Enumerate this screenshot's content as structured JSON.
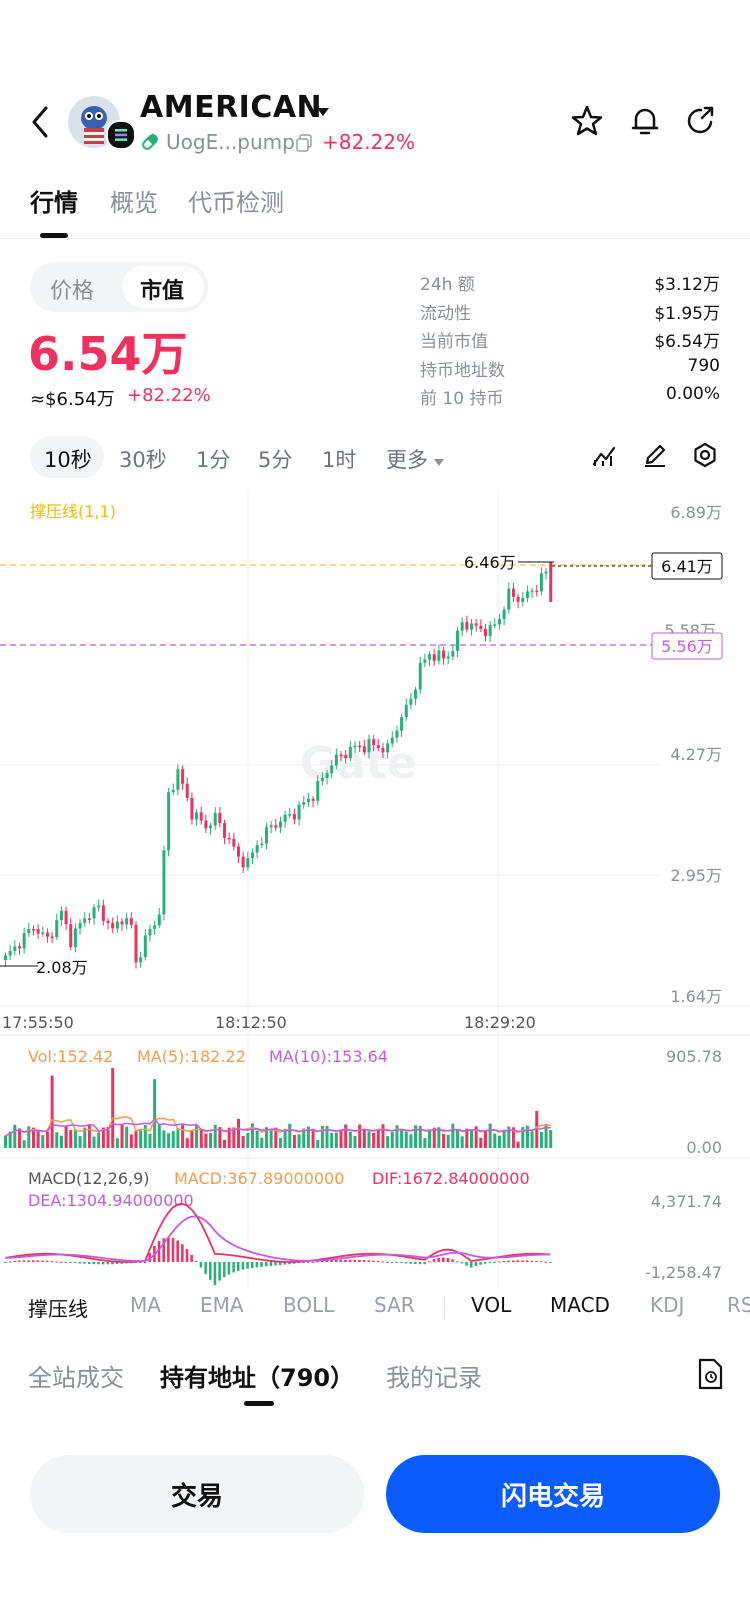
{
  "header": {
    "token_name": "AMERICAN",
    "address": "UogE...pump",
    "change": "+82.22%"
  },
  "tabs": [
    "行情",
    "概览",
    "代币检测"
  ],
  "toggle": {
    "price": "价格",
    "mcap": "市值"
  },
  "price": {
    "main": "6.54万",
    "usd": "≈$6.54万",
    "change": "+82.22%"
  },
  "stats": [
    {
      "label": "24h  额",
      "value": "$3.12万"
    },
    {
      "label": "流动性",
      "value": "$1.95万"
    },
    {
      "label": "当前市值",
      "value": "$6.54万"
    },
    {
      "label": "持币地址数",
      "value": "790"
    },
    {
      "label": "前 10 持币",
      "value": "0.00%"
    }
  ],
  "timeframes": [
    "10秒",
    "30秒",
    "1分",
    "5分",
    "1时",
    "更多"
  ],
  "chart": {
    "indicator_label": "撑压线(1,1)",
    "watermark": "Gate",
    "y_ticks": [
      "6.89万",
      "5.56万",
      "4.27万",
      "2.95万",
      "1.64万"
    ],
    "hidden_tick": "5.58万",
    "high_label": "6.46万",
    "low_label": "2.08万",
    "current_label": "6.41万",
    "support_label": "5.56万",
    "x_ticks": [
      "17:55:50",
      "18:12:50",
      "18:29:20"
    ],
    "vol_legend": {
      "vol": "Vol:152.42",
      "ma5": "MA(5):182.22",
      "ma10": "MA(10):153.64"
    },
    "vol_ticks": [
      "905.78",
      "0.00"
    ],
    "macd_legend": {
      "name": "MACD(12,26,9)",
      "macd": "MACD:367.89000000",
      "dif": "DIF:1672.84000000",
      "dea": "DEA:1304.94000000"
    },
    "macd_ticks": [
      "4,371.74",
      "-1,258.47"
    ],
    "colors": {
      "up": "#26b07b",
      "down": "#f0305f",
      "yellow": "#f5c140",
      "purple": "#c45ae0",
      "orange": "#f39b4b"
    }
  },
  "indicators": [
    "撑压线",
    "MA",
    "EMA",
    "BOLL",
    "SAR",
    "VOL",
    "MACD",
    "KDJ",
    "RS"
  ],
  "bottom_tabs": [
    "全站成交",
    "持有地址（790）",
    "我的记录"
  ],
  "buttons": {
    "trade": "交易",
    "flash": "闪电交易"
  }
}
